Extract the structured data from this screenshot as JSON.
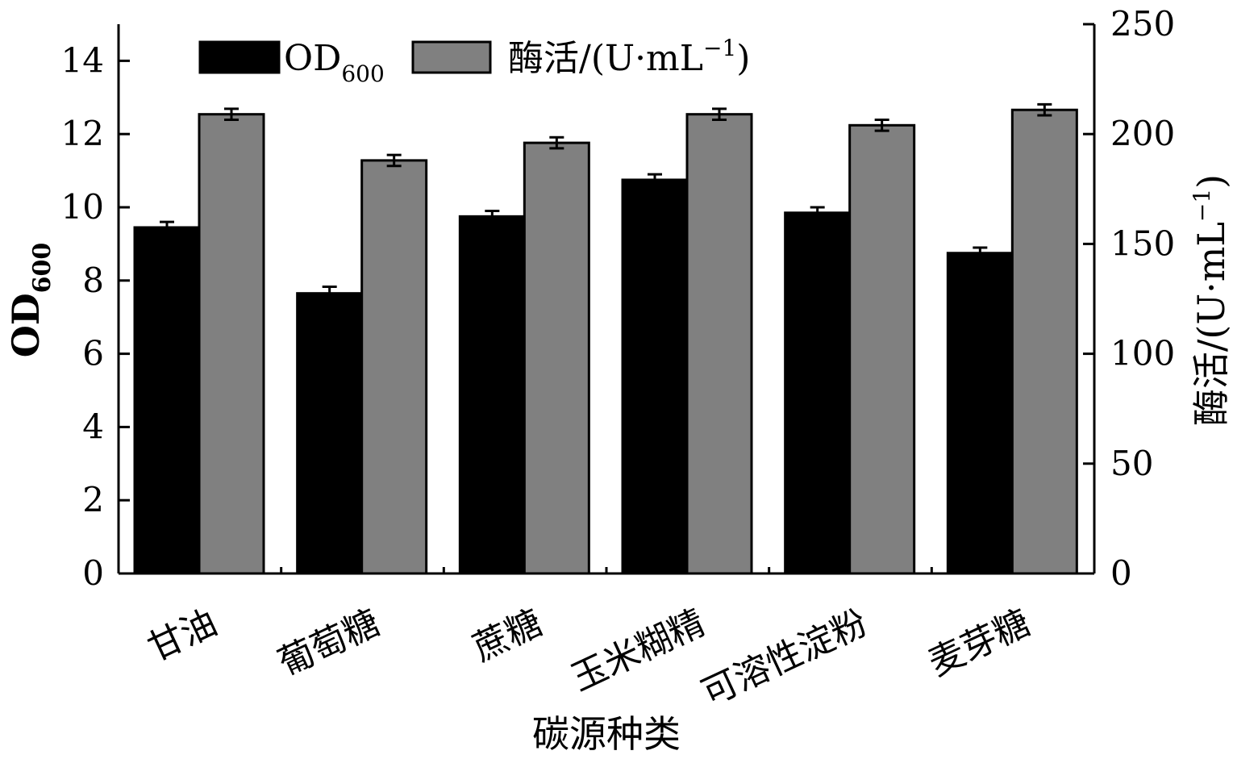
{
  "chart_data": {
    "type": "bar",
    "categories": [
      "甘油",
      "葡萄糖",
      "蔗糖",
      "玉米糊精",
      "可溶性淀粉",
      "麦芽糖"
    ],
    "series": [
      {
        "name": "OD600",
        "axis": "left",
        "color": "#000000",
        "values": [
          9.45,
          7.65,
          9.75,
          10.75,
          9.85,
          8.75
        ],
        "errors": [
          0.15,
          0.18,
          0.15,
          0.15,
          0.15,
          0.15
        ]
      },
      {
        "name": "酶活/(U·mL−1)",
        "axis": "right",
        "color": "#808080",
        "values": [
          209,
          188,
          196,
          209,
          204,
          211
        ],
        "errors": [
          2.5,
          2.5,
          2.5,
          2.5,
          2.5,
          2.5
        ]
      }
    ],
    "xlabel": "碳源种类",
    "ylabel_left": "OD600",
    "ylabel_right": "酶活/(U·mL−1)",
    "ylim_left": [
      0,
      15
    ],
    "ylim_right": [
      0,
      250
    ],
    "yticks_left": [
      "0",
      "2",
      "4",
      "6",
      "8",
      "10",
      "12",
      "14"
    ],
    "yticks_right": [
      "0",
      "50",
      "100",
      "150",
      "200",
      "250"
    ],
    "legend": {
      "position": "top-left",
      "entries": [
        {
          "base": "OD",
          "sub": "600"
        },
        {
          "base": "酶活/(U·mL",
          "sup": "−1",
          "tail": ")"
        }
      ]
    },
    "axis_titles": {
      "left": {
        "base": "OD",
        "sub": "600"
      },
      "right": {
        "base": "酶活/(U·mL",
        "sup": "−1",
        "tail": ")"
      }
    },
    "grid": false
  }
}
